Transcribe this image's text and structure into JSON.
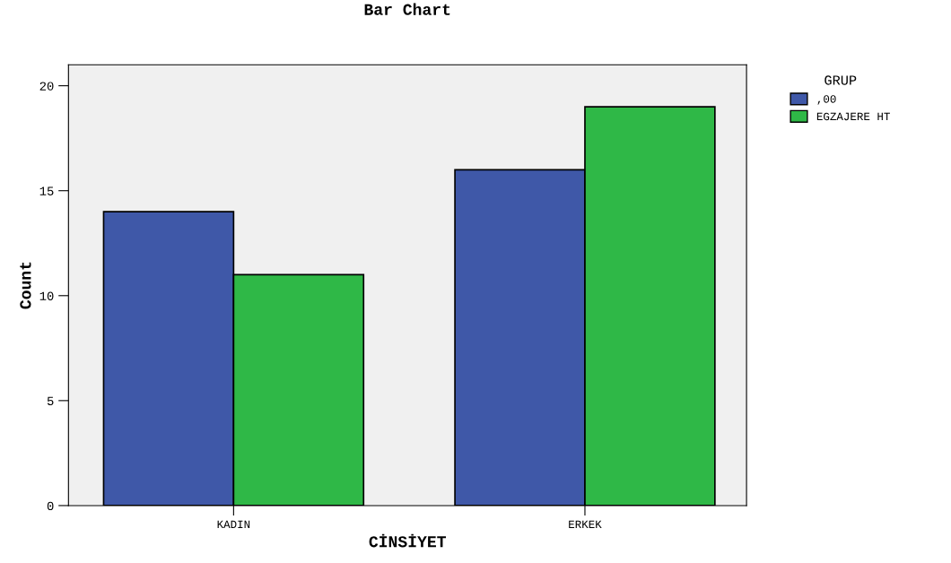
{
  "chart_data": {
    "type": "bar",
    "title": "Bar Chart",
    "xlabel": "CİNSİYET",
    "ylabel": "Count",
    "legend_title": "GRUP",
    "categories": [
      "KADIN",
      "ERKEK"
    ],
    "series": [
      {
        "name": ",00",
        "color": "#3f58a8",
        "values": [
          14,
          16
        ]
      },
      {
        "name": "EGZAJERE HT",
        "color": "#2fb847",
        "values": [
          11,
          19
        ]
      }
    ],
    "ylim": [
      0,
      21
    ],
    "yticks": [
      0,
      5,
      10,
      15,
      20
    ],
    "grid": false,
    "legend": "top right"
  }
}
